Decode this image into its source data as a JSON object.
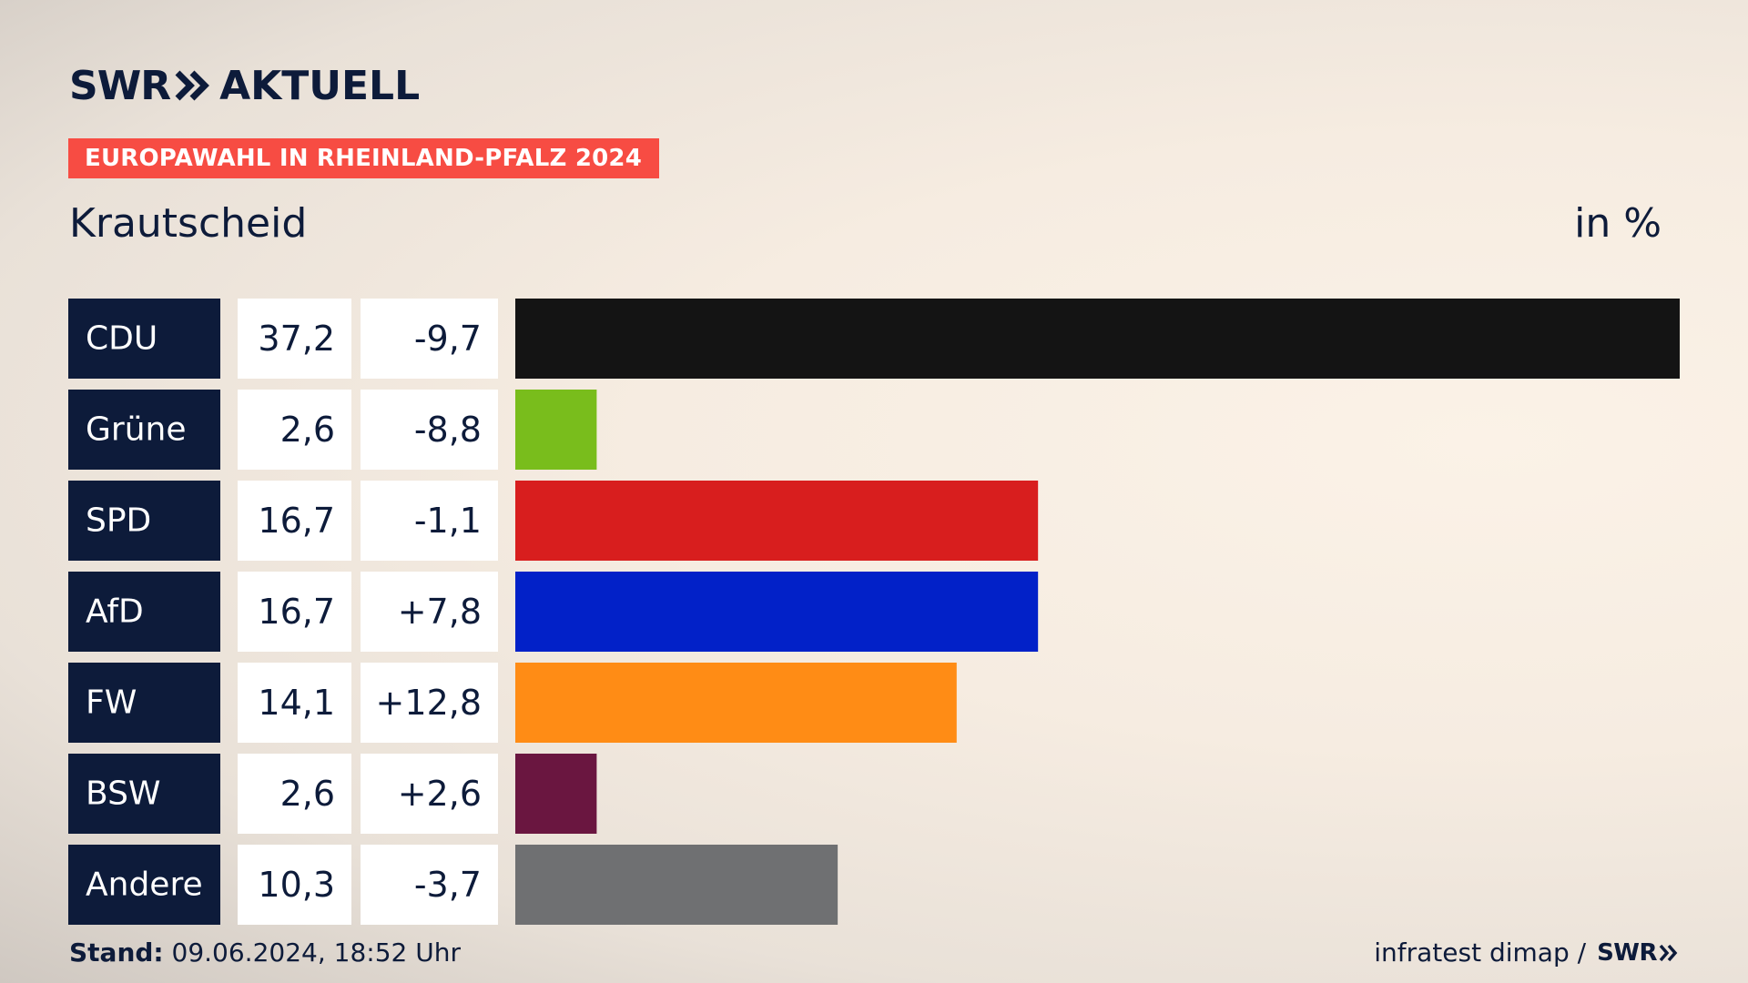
{
  "header": {
    "logo_swr": "SWR",
    "logo_aktuell": "AKTUELL",
    "badge": "EUROPAWAHL IN RHEINLAND-PFALZ 2024",
    "region": "Krautscheid",
    "unit": "in %"
  },
  "colors": {
    "navy": "#0d1b3a",
    "badge_red": "#f74c43"
  },
  "chart_data": {
    "type": "bar",
    "orientation": "horizontal",
    "categories": [
      "CDU",
      "Grüne",
      "SPD",
      "AfD",
      "FW",
      "BSW",
      "Andere"
    ],
    "values": [
      37.2,
      2.6,
      16.7,
      16.7,
      14.1,
      2.6,
      10.3
    ],
    "value_labels": [
      "37,2",
      "2,6",
      "16,7",
      "16,7",
      "14,1",
      "2,6",
      "10,3"
    ],
    "change_labels": [
      "-9,7",
      "-8,8",
      "-1,1",
      "+7,8",
      "+12,8",
      "+2,6",
      "-3,7"
    ],
    "bar_colors": [
      "#141414",
      "#79bd1c",
      "#d81e1e",
      "#0221c8",
      "#ff8c15",
      "#6a1640",
      "#6f7072"
    ],
    "xlim": [
      0,
      37.2
    ],
    "unit": "%"
  },
  "footer": {
    "stand_label": "Stand:",
    "stand_value": " 09.06.2024, 18:52 Uhr",
    "source": "infratest dimap /",
    "source_brand": "SWR"
  }
}
